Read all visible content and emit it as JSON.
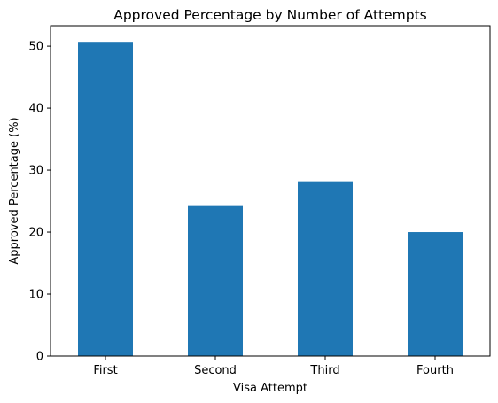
{
  "chart_data": {
    "type": "bar",
    "title": "Approved Percentage by Number of Attempts",
    "xlabel": "Visa Attempt",
    "ylabel": "Approved Percentage (%)",
    "categories": [
      "First",
      "Second",
      "Third",
      "Fourth"
    ],
    "values": [
      50.7,
      24.2,
      28.2,
      20.0
    ],
    "ylim": [
      0,
      53.3
    ],
    "yticks": [
      0,
      10,
      20,
      30,
      40,
      50
    ],
    "grid": false,
    "bar_color": "#1f77b4"
  }
}
